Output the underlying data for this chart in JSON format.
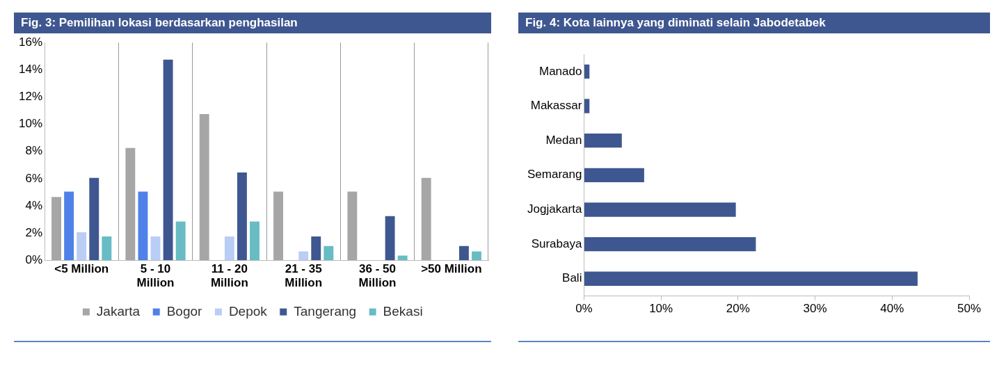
{
  "chart_data": [
    {
      "type": "bar",
      "title": "Fig. 3:  Pemilihan lokasi berdasarkan penghasilan",
      "categories": [
        "<5 Million",
        "5 - 10 Million",
        "11 - 20 Million",
        "21 - 35 Million",
        "36 - 50 Million",
        ">50 Million"
      ],
      "series": [
        {
          "name": "Jakarta",
          "color": "#a6a6a6",
          "values": [
            4.7,
            8.3,
            10.8,
            5.1,
            5.1,
            6.1
          ]
        },
        {
          "name": "Bogor",
          "color": "#4f81e8",
          "values": [
            5.1,
            5.1,
            null,
            null,
            null,
            null
          ]
        },
        {
          "name": "Depok",
          "color": "#b9cdf5",
          "values": [
            2.1,
            1.8,
            1.8,
            0.7,
            null,
            null
          ]
        },
        {
          "name": "Tangerang",
          "color": "#3f5790",
          "values": [
            6.1,
            14.8,
            6.5,
            1.8,
            3.3,
            1.1
          ]
        },
        {
          "name": "Bekasi",
          "color": "#68bcc4",
          "values": [
            1.8,
            2.9,
            2.9,
            1.1,
            0.4,
            0.7
          ]
        }
      ],
      "ylim": [
        0,
        16
      ],
      "yticks": [
        {
          "value": 0,
          "label": "0%"
        },
        {
          "value": 2,
          "label": "2%"
        },
        {
          "value": 4,
          "label": "4%"
        },
        {
          "value": 6,
          "label": "6%"
        },
        {
          "value": 8,
          "label": "8%"
        },
        {
          "value": 10,
          "label": "10%"
        },
        {
          "value": 12,
          "label": "12%"
        },
        {
          "value": 14,
          "label": "14%"
        },
        {
          "value": 16,
          "label": "16%"
        }
      ],
      "grid": "x",
      "legend": "bottom"
    },
    {
      "type": "bar",
      "title": "Fig. 4: Kota lainnya yang diminati selain Jabodetabek",
      "orientation": "horizontal",
      "categories": [
        "Manado",
        "Makassar",
        "Medan",
        "Semarang",
        "Jogjakarta",
        "Surabaya",
        "Bali"
      ],
      "series": [
        {
          "color": "#3f5790",
          "values": [
            0.8,
            0.8,
            5.0,
            7.9,
            19.8,
            22.4,
            43.4
          ]
        }
      ],
      "xlim": [
        0,
        50
      ],
      "xticks": [
        {
          "value": 0,
          "label": "0%"
        },
        {
          "value": 10,
          "label": "10%"
        },
        {
          "value": 20,
          "label": "20%"
        },
        {
          "value": 30,
          "label": "30%"
        },
        {
          "value": 40,
          "label": "40%"
        },
        {
          "value": 50,
          "label": "50%"
        }
      ],
      "grid": false,
      "legend": false
    }
  ]
}
